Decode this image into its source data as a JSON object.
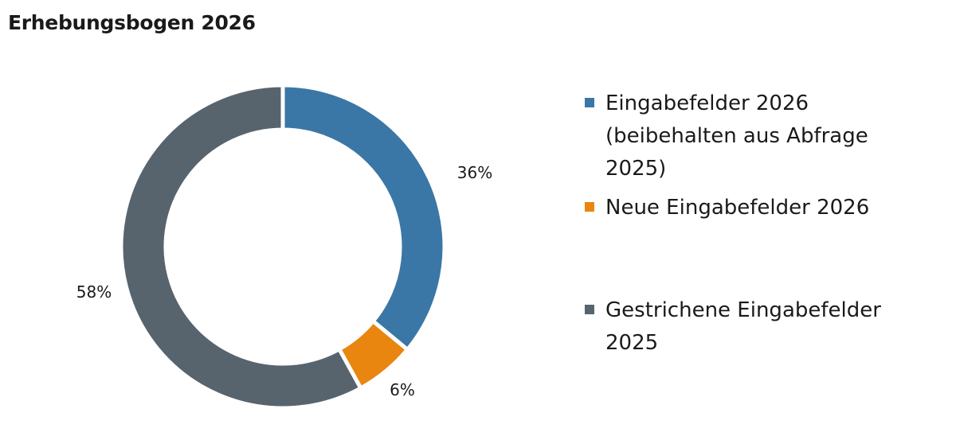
{
  "chart_data": {
    "type": "pie",
    "variant": "donut",
    "title": "Erhebungsbogen 2026",
    "start": "top",
    "direction": "clockwise",
    "slices": [
      {
        "label": "Eingabefelder 2026 (beibehalten aus Abfrage 2025)",
        "value": 36,
        "display": "36%",
        "color": "#3a77a6"
      },
      {
        "label": "Neue Eingabefelder 2026",
        "value": 6,
        "display": "6%",
        "color": "#e8860f"
      },
      {
        "label": "Gestrichene Eingabefelder 2025",
        "value": 58,
        "display": "58%",
        "color": "#57646e"
      }
    ],
    "legend": {
      "placement": "right",
      "entries": [
        {
          "lines": [
            "Eingabefelder 2026",
            "(beibehalten aus Abfrage",
            "2025)"
          ]
        },
        {
          "lines": [
            "Neue Eingabefelder 2026"
          ]
        },
        {
          "lines": [
            "Gestrichene Eingabefelder",
            "2025"
          ]
        }
      ]
    }
  }
}
